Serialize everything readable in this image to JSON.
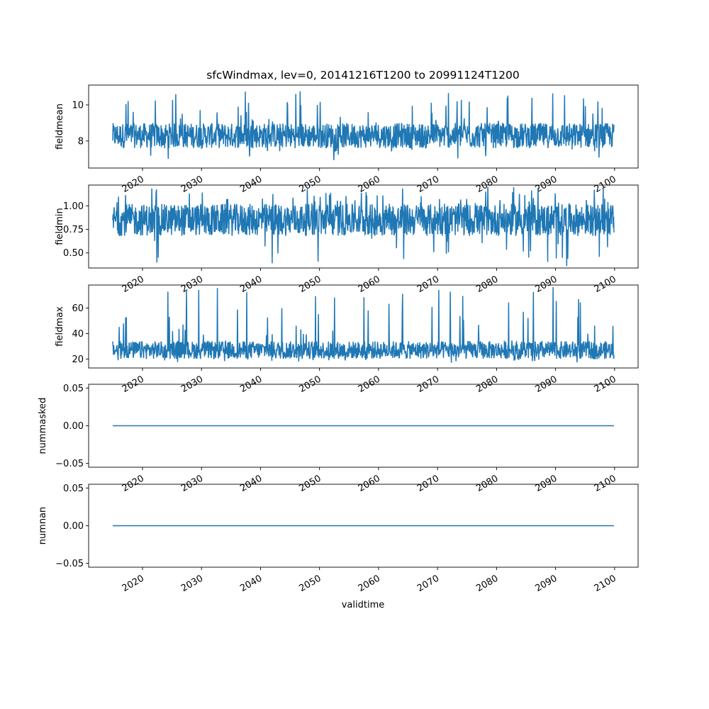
{
  "chart_data": {
    "type": "line",
    "title": "sfcWindmax, lev=0, 20141216T1200 to 20991124T1200",
    "xlabel": "validtime",
    "x_range": [
      "2014-12-16",
      "2099-11-24"
    ],
    "x_tick_labels": [
      "2020",
      "2030",
      "2040",
      "2050",
      "2060",
      "2070",
      "2080",
      "2090",
      "2100"
    ],
    "line_color": "#1f77b4",
    "panels": [
      {
        "name": "fieldmean",
        "ylabel": "fieldmean",
        "ylim": [
          6.5,
          11.1
        ],
        "yticks": [
          8,
          10
        ],
        "ytick_labels": [
          "8",
          "10"
        ],
        "series": {
          "kind": "noise",
          "base": 8.4,
          "low": 6.9,
          "high": 10.9,
          "typical_low": 7.6,
          "typical_high": 9.0
        }
      },
      {
        "name": "fieldmin",
        "ylabel": "fieldmin",
        "ylim": [
          0.34,
          1.22
        ],
        "yticks": [
          0.5,
          0.75,
          1.0
        ],
        "ytick_labels": [
          "0.50",
          "0.75",
          "1.00"
        ],
        "series": {
          "kind": "noise",
          "base": 0.85,
          "low": 0.36,
          "high": 1.2,
          "typical_low": 0.68,
          "typical_high": 1.02
        }
      },
      {
        "name": "fieldmax",
        "ylabel": "fieldmax",
        "ylim": [
          13,
          78
        ],
        "yticks": [
          20,
          40,
          60
        ],
        "ytick_labels": [
          "20",
          "40",
          "60"
        ],
        "series": {
          "kind": "noise",
          "base": 26,
          "low": 17,
          "high": 77,
          "typical_low": 20,
          "typical_high": 34
        }
      },
      {
        "name": "nummasked",
        "ylabel": "nummasked",
        "ylim": [
          -0.055,
          0.055
        ],
        "yticks": [
          -0.05,
          0.0,
          0.05
        ],
        "ytick_labels": [
          "−0.05",
          "0.00",
          "0.05"
        ],
        "series": {
          "kind": "constant",
          "value": 0.0
        }
      },
      {
        "name": "numnan",
        "ylabel": "numnan",
        "ylim": [
          -0.055,
          0.055
        ],
        "yticks": [
          -0.05,
          0.0,
          0.05
        ],
        "ytick_labels": [
          "−0.05",
          "0.00",
          "0.05"
        ],
        "series": {
          "kind": "constant",
          "value": 0.0
        }
      }
    ]
  }
}
